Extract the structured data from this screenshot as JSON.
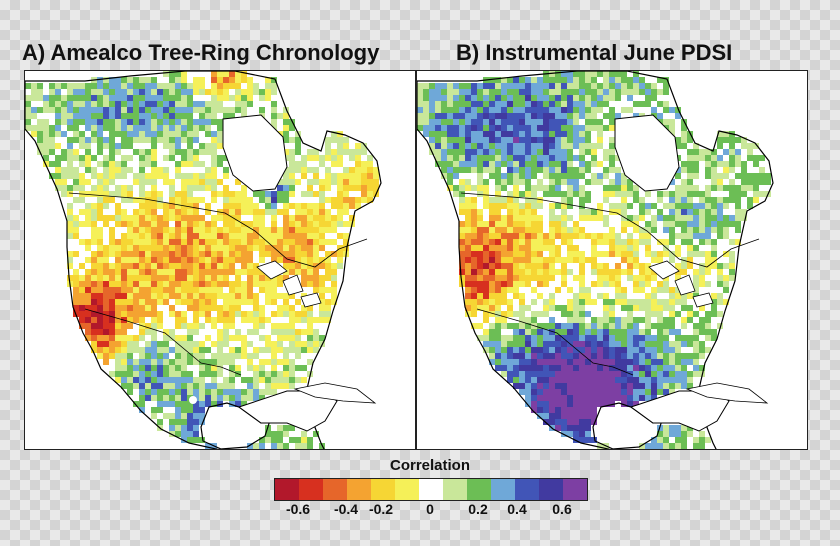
{
  "panels": [
    {
      "label": "A) Amealco Tree-Ring Chronology",
      "scenario": "tree_ring"
    },
    {
      "label": "B) Instrumental June PDSI",
      "scenario": "pdsi"
    }
  ],
  "legend": {
    "title": "Correlation",
    "colors": [
      "#b2182b",
      "#d7301f",
      "#e6662a",
      "#f4a331",
      "#f6d634",
      "#f5f058",
      "#ffffff",
      "#c9e79a",
      "#6cbe55",
      "#6fa8d8",
      "#4155b7",
      "#413aa0",
      "#7d3fa3"
    ],
    "tick_labels": [
      "-0.6",
      "-0.4",
      "-0.2",
      "0",
      "0.2",
      "0.4",
      "0.6"
    ]
  },
  "colors": {
    "coastline": "#000000",
    "water": "#ffffff",
    "frame": "#222222"
  }
}
